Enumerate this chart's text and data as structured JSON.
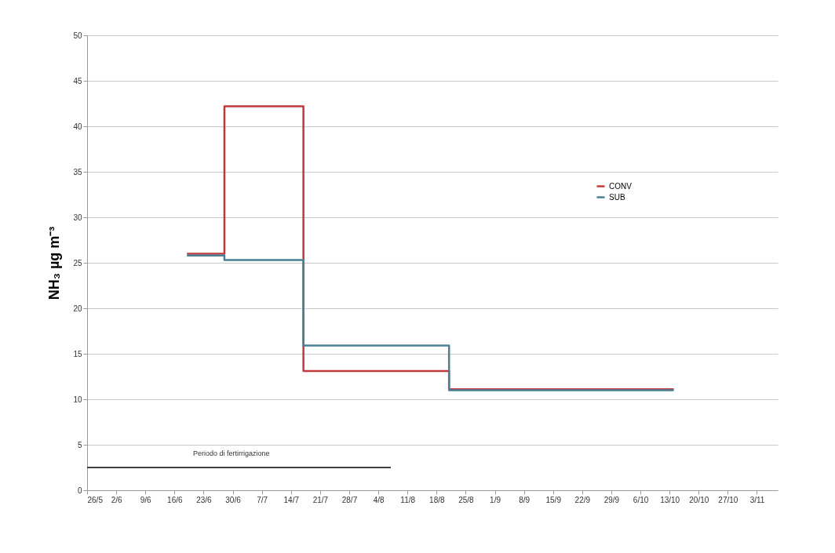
{
  "chart_data": {
    "type": "step",
    "ylabel": "NH₃ µg m⁻³",
    "x": [
      "--06-19",
      "--06-28",
      "--07-17",
      "--08-21",
      "--10-14"
    ],
    "series": [
      {
        "name": "CONV",
        "color": "#c0393b",
        "values": [
          26,
          42.2,
          13.1,
          11.1,
          11.1
        ]
      },
      {
        "name": "SUB",
        "color": "#4a7f95",
        "values": [
          25.8,
          25.3,
          15.9,
          11.0,
          11.0
        ]
      },
      {
        "type": "line",
        "color": "#404040",
        "x": [
          "--05-26",
          "--08-07"
        ],
        "values": [
          2.5,
          2.5
        ]
      }
    ],
    "annotations": [
      "Periodo di fertirrigazione"
    ],
    "xlim": [
      "--05-26",
      "--11-08"
    ],
    "xticks": [
      {
        "value": "--05-26",
        "label": "26/5"
      },
      {
        "value": "--06-02",
        "label": "2/6"
      },
      {
        "value": "--06-09",
        "label": "9/6"
      },
      {
        "value": "--06-16",
        "label": "16/6"
      },
      {
        "value": "--06-23",
        "label": "23/6"
      },
      {
        "value": "--06-30",
        "label": "30/6"
      },
      {
        "value": "--07-07",
        "label": "7/7"
      },
      {
        "value": "--07-14",
        "label": "14/7"
      },
      {
        "value": "--07-21",
        "label": "21/7"
      },
      {
        "value": "--07-28",
        "label": "28/7"
      },
      {
        "value": "--08-04",
        "label": "4/8"
      },
      {
        "value": "--08-11",
        "label": "11/8"
      },
      {
        "value": "--08-18",
        "label": "18/8"
      },
      {
        "value": "--08-25",
        "label": "25/8"
      },
      {
        "value": "--09-01",
        "label": "1/9"
      },
      {
        "value": "--09-08",
        "label": "8/9"
      },
      {
        "value": "--09-15",
        "label": "15/9"
      },
      {
        "value": "--09-22",
        "label": "22/9"
      },
      {
        "value": "--09-29",
        "label": "29/9"
      },
      {
        "value": "--10-06",
        "label": "6/10"
      },
      {
        "value": "--10-13",
        "label": "13/10"
      },
      {
        "value": "--10-20",
        "label": "20/10"
      },
      {
        "value": "--10-27",
        "label": "27/10"
      },
      {
        "value": "--11-03",
        "label": "3/11"
      }
    ],
    "ylim": [
      0,
      50
    ],
    "yticks": [
      0,
      5,
      10,
      15,
      20,
      25,
      30,
      35,
      40,
      45,
      50
    ],
    "grid": "y",
    "legend": "top right"
  }
}
